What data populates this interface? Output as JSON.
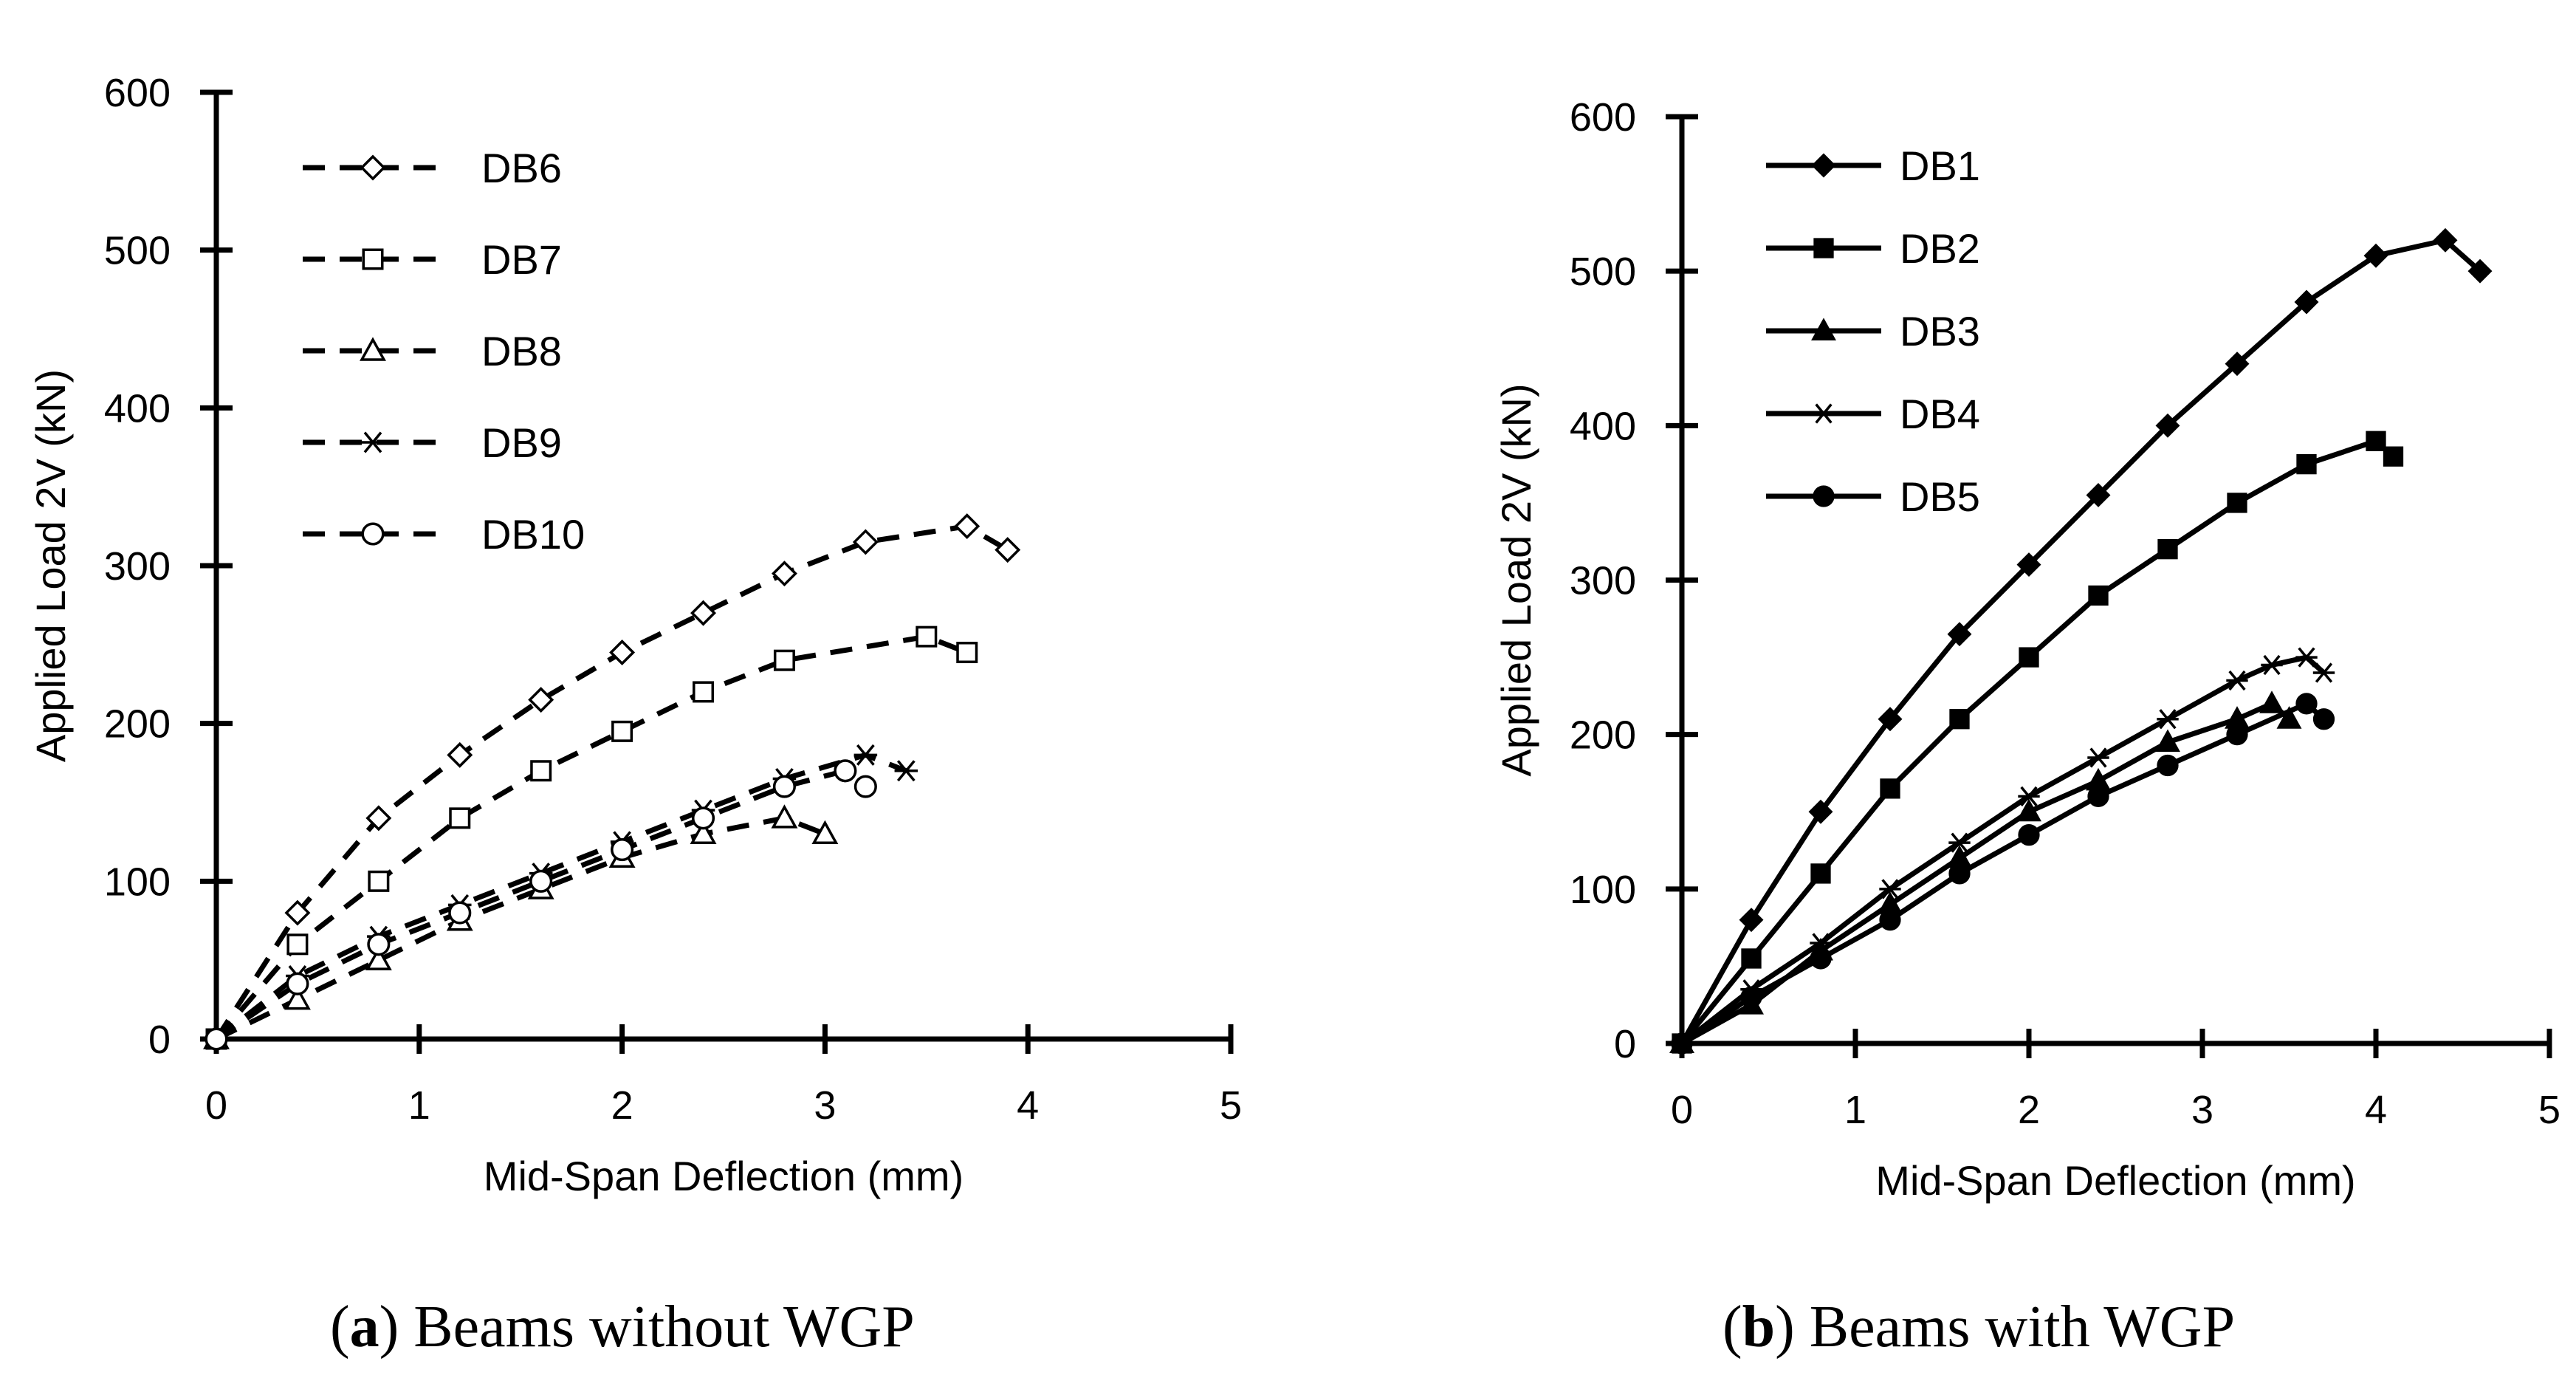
{
  "chart_data": [
    {
      "id": "a",
      "type": "line",
      "title": "",
      "caption_letter": "a",
      "caption_text": "Beams without WGP",
      "xlabel": "Mid-Span Deflection (mm)",
      "ylabel": "Applied Load 2V (kN)",
      "xlim": [
        0,
        5
      ],
      "ylim": [
        0,
        600
      ],
      "xticks": [
        "0",
        "1",
        "2",
        "3",
        "4",
        "5"
      ],
      "yticks": [
        "0",
        "100",
        "200",
        "300",
        "400",
        "500",
        "600"
      ],
      "grid": false,
      "legend_position": "top-left",
      "line_style": "dashed",
      "series": [
        {
          "name": "DB6",
          "marker": "diamond-open",
          "x": [
            0,
            0.4,
            0.8,
            1.2,
            1.6,
            2.0,
            2.4,
            2.8,
            3.2,
            3.7,
            3.9
          ],
          "y": [
            0,
            80,
            140,
            180,
            215,
            245,
            270,
            295,
            315,
            325,
            310
          ]
        },
        {
          "name": "DB7",
          "marker": "square-open",
          "x": [
            0,
            0.4,
            0.8,
            1.2,
            1.6,
            2.0,
            2.4,
            2.8,
            3.5,
            3.7
          ],
          "y": [
            0,
            60,
            100,
            140,
            170,
            195,
            220,
            240,
            255,
            245
          ]
        },
        {
          "name": "DB8",
          "marker": "triangle-open",
          "x": [
            0,
            0.4,
            0.8,
            1.2,
            1.6,
            2.0,
            2.4,
            2.8,
            3.0
          ],
          "y": [
            0,
            25,
            50,
            75,
            95,
            115,
            130,
            140,
            130
          ]
        },
        {
          "name": "DB9",
          "marker": "asterisk",
          "x": [
            0,
            0.4,
            0.8,
            1.2,
            1.6,
            2.0,
            2.4,
            2.8,
            3.2,
            3.4
          ],
          "y": [
            0,
            40,
            65,
            85,
            105,
            125,
            145,
            165,
            180,
            170
          ]
        },
        {
          "name": "DB10",
          "marker": "circle-open",
          "x": [
            0,
            0.4,
            0.8,
            1.2,
            1.6,
            2.0,
            2.4,
            2.8,
            3.1,
            3.2
          ],
          "y": [
            0,
            35,
            60,
            80,
            100,
            120,
            140,
            160,
            170,
            160
          ]
        }
      ]
    },
    {
      "id": "b",
      "type": "line",
      "title": "",
      "caption_letter": "b",
      "caption_text": "Beams with WGP",
      "xlabel": "Mid-Span Deflection (mm)",
      "ylabel": "Applied Load 2V (kN)",
      "xlim": [
        0,
        5
      ],
      "ylim": [
        0,
        600
      ],
      "xticks": [
        "0",
        "1",
        "2",
        "3",
        "4",
        "5"
      ],
      "yticks": [
        "0",
        "100",
        "200",
        "300",
        "400",
        "500",
        "600"
      ],
      "grid": false,
      "legend_position": "top-left",
      "line_style": "solid",
      "series": [
        {
          "name": "DB1",
          "marker": "diamond-filled",
          "x": [
            0,
            0.4,
            0.8,
            1.2,
            1.6,
            2.0,
            2.4,
            2.8,
            3.2,
            3.6,
            4.0,
            4.4,
            4.6
          ],
          "y": [
            0,
            80,
            150,
            210,
            265,
            310,
            355,
            400,
            440,
            480,
            510,
            520,
            500
          ]
        },
        {
          "name": "DB2",
          "marker": "square-filled",
          "x": [
            0,
            0.4,
            0.8,
            1.2,
            1.6,
            2.0,
            2.4,
            2.8,
            3.2,
            3.6,
            4.0,
            4.1
          ],
          "y": [
            0,
            55,
            110,
            165,
            210,
            250,
            290,
            320,
            350,
            375,
            390,
            380
          ]
        },
        {
          "name": "DB3",
          "marker": "triangle-filled",
          "x": [
            0,
            0.4,
            0.8,
            1.2,
            1.6,
            2.0,
            2.4,
            2.8,
            3.2,
            3.4,
            3.5
          ],
          "y": [
            0,
            25,
            60,
            90,
            120,
            150,
            170,
            195,
            210,
            220,
            210
          ]
        },
        {
          "name": "DB4",
          "marker": "asterisk",
          "x": [
            0,
            0.4,
            0.8,
            1.2,
            1.6,
            2.0,
            2.4,
            2.8,
            3.2,
            3.4,
            3.6,
            3.7
          ],
          "y": [
            0,
            35,
            65,
            100,
            130,
            160,
            185,
            210,
            235,
            245,
            250,
            240
          ]
        },
        {
          "name": "DB5",
          "marker": "circle-filled",
          "x": [
            0,
            0.4,
            0.8,
            1.2,
            1.6,
            2.0,
            2.4,
            2.8,
            3.2,
            3.6,
            3.7
          ],
          "y": [
            0,
            30,
            55,
            80,
            110,
            135,
            160,
            180,
            200,
            220,
            210
          ]
        }
      ]
    }
  ]
}
